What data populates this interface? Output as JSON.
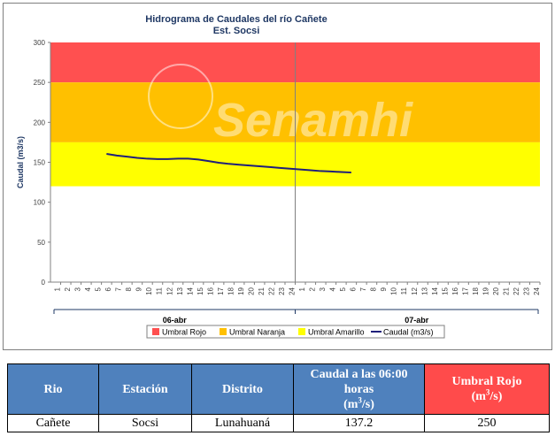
{
  "chart_data": {
    "type": "line",
    "title": "Hidrograma de Caudales  del río Cañete",
    "subtitle": "Est. Socsi",
    "ylabel": "Caudal  (m3/s)",
    "ylim": [
      0,
      300
    ],
    "yticks": [
      "0",
      "50",
      "100",
      "150",
      "200",
      "250",
      "300"
    ],
    "x_ticks": [
      "1",
      "2",
      "3",
      "4",
      "5",
      "6",
      "7",
      "8",
      "9",
      "10",
      "11",
      "12",
      "13",
      "14",
      "15",
      "16",
      "17",
      "18",
      "19",
      "20",
      "21",
      "22",
      "23",
      "24",
      "1",
      "2",
      "3",
      "4",
      "5",
      "6",
      "7",
      "8",
      "9",
      "10",
      "11",
      "12",
      "13",
      "14",
      "15",
      "16",
      "17",
      "18",
      "19",
      "20",
      "21",
      "22",
      "23",
      "24"
    ],
    "day_labels": [
      "06-abr",
      "07-abr"
    ],
    "watermark": "Senamhi",
    "bands": [
      {
        "name": "Umbral Rojo",
        "from": 250,
        "to": 300,
        "color": "#ff5050"
      },
      {
        "name": "Umbral Naranja",
        "from": 175,
        "to": 250,
        "color": "#ffc000"
      },
      {
        "name": "Umbral Amarillo",
        "from": 120,
        "to": 175,
        "color": "#ffff00"
      }
    ],
    "series": [
      {
        "name": "Caudal (m3/s)",
        "color": "#1f1f7a",
        "x": [
          6,
          7,
          8,
          9,
          10,
          11,
          12,
          13,
          14,
          15,
          16,
          17,
          18,
          19,
          20,
          21,
          22,
          23,
          24,
          25,
          26,
          27,
          28,
          29,
          30
        ],
        "values": [
          160.5,
          158.5,
          157,
          155.5,
          154.5,
          154,
          154,
          154.5,
          154.5,
          153.5,
          151.5,
          149.5,
          148,
          147,
          146,
          145,
          144,
          143,
          142,
          141,
          140,
          139,
          138.5,
          137.8,
          137.2
        ]
      }
    ],
    "legend": [
      "Umbral Rojo",
      "Umbral Naranja",
      "Umbral Amarillo",
      "Caudal (m3/s)"
    ]
  },
  "table": {
    "headers": [
      "Rio",
      "Estación",
      "Distrito",
      "Caudal a las 06:00 horas",
      "Umbral Rojo"
    ],
    "units": [
      "m",
      "3",
      "/s"
    ],
    "row": [
      "Cañete",
      "Socsi",
      "Lunahuaná",
      "137.2",
      "250"
    ]
  }
}
